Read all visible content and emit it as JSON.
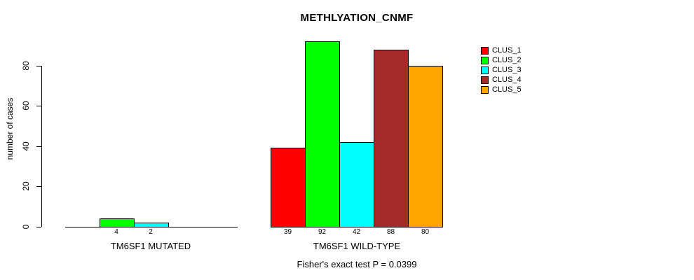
{
  "title": "METHLYATION_CNMF",
  "y_axis": {
    "label": "number of cases",
    "tick_labels": [
      "0",
      "20",
      "40",
      "60",
      "80"
    ]
  },
  "footer": "Fisher's exact test P = 0.0399",
  "legend": {
    "entries": [
      {
        "label": "CLUS_1",
        "color": "#FF0000"
      },
      {
        "label": "CLUS_2",
        "color": "#00FF00"
      },
      {
        "label": "CLUS_3",
        "color": "#00FFFF"
      },
      {
        "label": "CLUS_4",
        "color": "#A52A2A"
      },
      {
        "label": "CLUS_5",
        "color": "#FFA500"
      }
    ]
  },
  "chart_data": {
    "type": "bar",
    "title": "METHLYATION_CNMF",
    "ylabel": "number of cases",
    "xlabel": "",
    "yticks": [
      0,
      20,
      40,
      60,
      80
    ],
    "ylim": [
      0,
      96
    ],
    "grid": false,
    "legend_position": "right",
    "series_names": [
      "CLUS_1",
      "CLUS_2",
      "CLUS_3",
      "CLUS_4",
      "CLUS_5"
    ],
    "colors": [
      "#FF0000",
      "#00FF00",
      "#00FFFF",
      "#A52A2A",
      "#FFA500"
    ],
    "groups": [
      {
        "label": "TM6SF1 MUTATED",
        "values": [
          0,
          4,
          2,
          0,
          0
        ],
        "bar_labels": [
          "",
          "4",
          "2",
          "",
          ""
        ]
      },
      {
        "label": "TM6SF1 WILD-TYPE",
        "values": [
          39,
          92,
          42,
          88,
          80
        ],
        "bar_labels": [
          "39",
          "92",
          "42",
          "88",
          "80"
        ]
      }
    ],
    "annotation": "Fisher's exact test P = 0.0399"
  }
}
